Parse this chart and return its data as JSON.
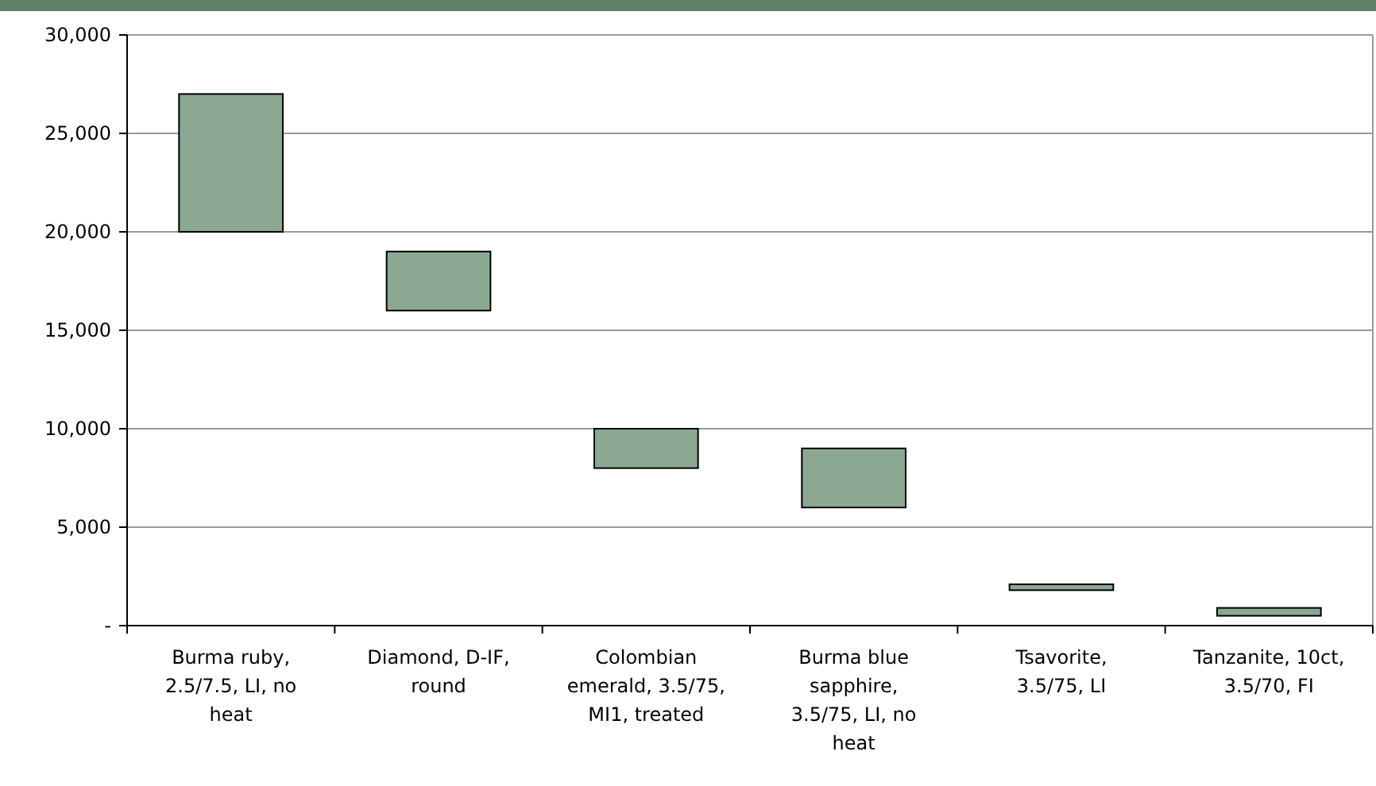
{
  "chart_data": {
    "type": "bar",
    "categories": [
      "Burma ruby, 2.5/7.5, LI, no heat",
      "Diamond, D-IF, round",
      "Colombian emerald, 3.5/75, MI1, treated",
      "Burma blue sapphire, 3.5/75, LI, no heat",
      "Tsavorite, 3.5/75, LI",
      "Tanzanite, 10ct, 3.5/70, FI"
    ],
    "base": [
      20000,
      16000,
      8000,
      6000,
      1800,
      500
    ],
    "values": [
      7000,
      3000,
      2000,
      3000,
      300,
      400
    ],
    "color": "#8ba893",
    "ylim": [
      0,
      30000
    ],
    "yticks": [
      {
        "value": 0,
        "label": "-"
      },
      {
        "value": 5000,
        "label": "5,000"
      },
      {
        "value": 10000,
        "label": "10,000"
      },
      {
        "value": 15000,
        "label": "15,000"
      },
      {
        "value": 20000,
        "label": "20,000"
      },
      {
        "value": 25000,
        "label": "25,000"
      },
      {
        "value": 30000,
        "label": "30,000"
      }
    ],
    "grid": "y"
  }
}
